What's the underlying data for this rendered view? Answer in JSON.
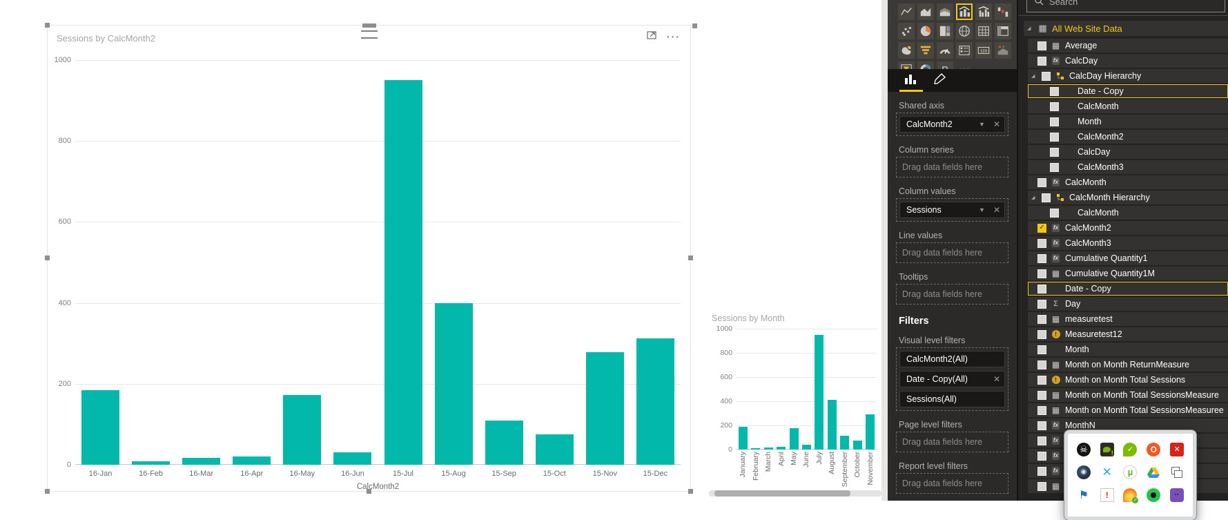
{
  "colors": {
    "accent_teal": "#01B8AA",
    "accent_yellow": "#F2C811",
    "panel_bg": "#2b2a29",
    "gallery_bg": "#3b3937",
    "pill_bg": "#191817",
    "grid_line": "#e8e8e8"
  },
  "chart_data": [
    {
      "type": "bar",
      "title": "Sessions by CalcMonth2",
      "categories": [
        "16-Jan",
        "16-Feb",
        "16-Mar",
        "16-Apr",
        "16-May",
        "16-Jun",
        "15-Jul",
        "15-Aug",
        "15-Sep",
        "15-Oct",
        "15-Nov",
        "15-Dec"
      ],
      "values": [
        185,
        8,
        17,
        20,
        173,
        30,
        950,
        400,
        110,
        75,
        278,
        313
      ],
      "xlabel": "CalcMonth2",
      "ylabel": "",
      "ylim": [
        0,
        1000
      ],
      "y_ticks": [
        "1000",
        "800",
        "600",
        "400",
        "200",
        "0"
      ],
      "grid": true,
      "legend": "none",
      "bar_color": "#01B8AA"
    },
    {
      "type": "bar",
      "title": "Sessions by Month",
      "categories": [
        "January",
        "February",
        "March",
        "April",
        "May",
        "June",
        "July",
        "August",
        "September",
        "October",
        "November"
      ],
      "values": [
        190,
        10,
        20,
        22,
        175,
        40,
        950,
        410,
        113,
        73,
        292
      ],
      "xlabel": "",
      "ylabel": "",
      "ylim": [
        0,
        1000
      ],
      "y_ticks": [
        "1000",
        "800",
        "600",
        "400",
        "200",
        "0"
      ],
      "grid": true,
      "legend": "none",
      "x_label_rotation": 90,
      "bar_color": "#01B8AA"
    }
  ],
  "main_visual": {
    "focus_mode_icon": "focus-mode-icon",
    "more_options_label": "···"
  },
  "viz_panel": {
    "gallery": [
      {
        "name": "line-chart"
      },
      {
        "name": "area-chart"
      },
      {
        "name": "stacked-area-chart"
      },
      {
        "name": "line-and-stacked-column-chart",
        "selected": true
      },
      {
        "name": "line-and-clustered-column-chart"
      },
      {
        "name": "waterfall-chart"
      },
      {
        "name": "scatter-chart"
      },
      {
        "name": "pie-chart"
      },
      {
        "name": "treemap"
      },
      {
        "name": "map"
      },
      {
        "name": "table"
      },
      {
        "name": "matrix"
      },
      {
        "name": "filled-map"
      },
      {
        "name": "funnel"
      },
      {
        "name": "gauge"
      },
      {
        "name": "multi-row-card"
      },
      {
        "name": "card"
      },
      {
        "name": "kpi"
      },
      {
        "name": "slicer"
      },
      {
        "name": "donut-chart"
      },
      {
        "name": "r-script-visual"
      },
      {
        "name": "more-options"
      }
    ],
    "tabs": [
      {
        "name": "fields-tab",
        "selected": true
      },
      {
        "name": "format-tab"
      }
    ],
    "field_wells": [
      {
        "label": "Shared axis",
        "pills": [
          {
            "label": "CalcMonth2",
            "dropdown": true,
            "removable": true
          }
        ]
      },
      {
        "label": "Column series",
        "placeholder": "Drag data fields here"
      },
      {
        "label": "Column values",
        "pills": [
          {
            "label": "Sessions",
            "dropdown": true,
            "removable": true
          }
        ]
      },
      {
        "label": "Line values",
        "placeholder": "Drag data fields here"
      },
      {
        "label": "Tooltips",
        "placeholder": "Drag data fields here"
      }
    ],
    "filters": {
      "heading": "Filters",
      "sections": [
        {
          "label": "Visual level filters",
          "pills": [
            {
              "label": "CalcMonth2(All)"
            },
            {
              "label": "Date - Copy(All)",
              "removable": true
            },
            {
              "label": "Sessions(All)"
            }
          ]
        },
        {
          "label": "Page level filters",
          "placeholder": "Drag data fields here"
        },
        {
          "label": "Report level filters",
          "placeholder": "Drag data fields here"
        }
      ]
    }
  },
  "fields_panel": {
    "search_placeholder": "Search",
    "table_name": "All Web Site Data",
    "fields": [
      {
        "label": "All Web Site Data",
        "icon": "table",
        "arrow": true,
        "header": true
      },
      {
        "label": "Average",
        "icon": "calc"
      },
      {
        "label": "CalcDay",
        "icon": "fx"
      },
      {
        "label": "CalcDay Hierarchy",
        "icon": "hierarchy",
        "arrow": true
      },
      {
        "label": "Date - Copy",
        "indent": 1,
        "highlight": true
      },
      {
        "label": "CalcMonth",
        "indent": 1
      },
      {
        "label": "Month",
        "indent": 1
      },
      {
        "label": "CalcMonth2",
        "indent": 1
      },
      {
        "label": "CalcDay",
        "indent": 1
      },
      {
        "label": "CalcMonth3",
        "indent": 1
      },
      {
        "label": "CalcMonth",
        "icon": "fx"
      },
      {
        "label": "CalcMonth Hierarchy",
        "icon": "hierarchy",
        "arrow": true
      },
      {
        "label": "CalcMonth",
        "indent": 1
      },
      {
        "label": "CalcMonth2",
        "icon": "fx",
        "checked": true
      },
      {
        "label": "CalcMonth3",
        "icon": "fx"
      },
      {
        "label": "Cumulative Quantity1",
        "icon": "fx"
      },
      {
        "label": "Cumulative Quantity1M",
        "icon": "calc"
      },
      {
        "label": "Date - Copy",
        "highlight": true
      },
      {
        "label": "Day",
        "icon": "sigma"
      },
      {
        "label": "measuretest",
        "icon": "calc"
      },
      {
        "label": "Measuretest12",
        "icon": "warning"
      },
      {
        "label": "Month"
      },
      {
        "label": "Month on Month ReturnMeasure",
        "icon": "calc"
      },
      {
        "label": "Month on Month Total Sessions",
        "icon": "warning"
      },
      {
        "label": "Month on Month Total SessionsMeasure",
        "icon": "calc"
      },
      {
        "label": "Month on Month Total SessionsMeasuree",
        "icon": "calc"
      },
      {
        "label": "MonthN",
        "icon": "fx"
      },
      {
        "label": "",
        "icon": "fx"
      },
      {
        "label": "",
        "icon": "fx"
      },
      {
        "label": "",
        "icon": "fx"
      },
      {
        "label": "",
        "icon": "calc"
      }
    ]
  },
  "tray_popup": {
    "icons": [
      {
        "name": "media-skull-icon",
        "kind": "skull"
      },
      {
        "name": "nvidia-geforce-icon",
        "kind": "nvidia"
      },
      {
        "name": "green-check-bubble-icon",
        "kind": "chatck"
      },
      {
        "name": "origin-icon",
        "kind": "origin"
      },
      {
        "name": "blocked-file-icon",
        "kind": "redfile"
      },
      {
        "name": "steam-icon",
        "kind": "steam"
      },
      {
        "name": "splashtop-icon",
        "kind": "splash"
      },
      {
        "name": "utorrent-icon",
        "kind": "utor"
      },
      {
        "name": "google-drive-icon",
        "kind": "gdrive"
      },
      {
        "name": "window-copy-icon",
        "kind": "wincopy"
      },
      {
        "name": "blue-flag-icon",
        "kind": "flag"
      },
      {
        "name": "alert-document-icon",
        "kind": "alert"
      },
      {
        "name": "flame-updater-icon",
        "kind": "flame"
      },
      {
        "name": "green-orb-icon",
        "kind": "orb"
      },
      {
        "name": "purple-pixel-monster-icon",
        "kind": "monster"
      }
    ]
  }
}
